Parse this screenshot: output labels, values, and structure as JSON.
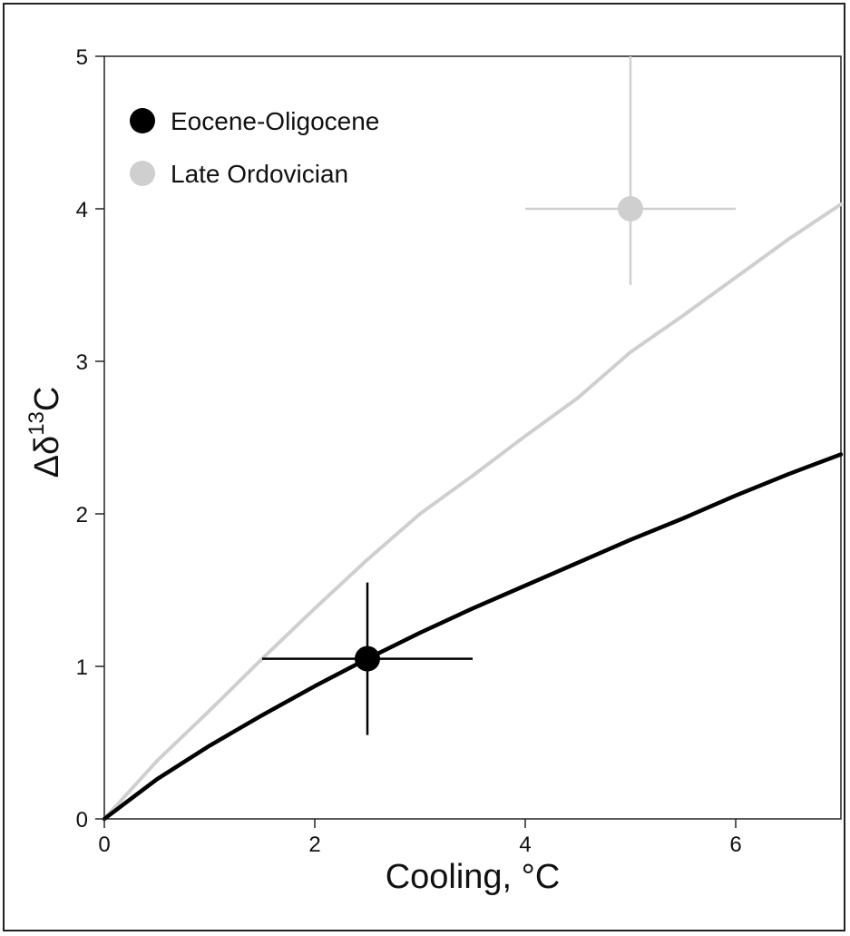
{
  "chart_data": {
    "type": "scatter",
    "xlabel": "Cooling, °C",
    "ylabel_main": "Δδ",
    "ylabel_sup": "13",
    "ylabel_tail": "C",
    "xlim": [
      0,
      7
    ],
    "ylim": [
      0,
      5
    ],
    "xticks": [
      0,
      2,
      4,
      6
    ],
    "yticks": [
      0,
      1,
      2,
      3,
      4,
      5
    ],
    "grid": false,
    "legend_position": "top-left",
    "series": [
      {
        "name": "Eocene-Oligocene",
        "color": "#000000",
        "point": {
          "x": 2.5,
          "y": 1.05
        },
        "x_error": [
          1.5,
          3.5
        ],
        "y_error": [
          0.55,
          1.55
        ],
        "curve": {
          "x": [
            0,
            0.5,
            1,
            1.5,
            2,
            2.5,
            3,
            3.5,
            4,
            4.5,
            5,
            5.5,
            6,
            6.5,
            7
          ],
          "y": [
            0,
            0.26,
            0.48,
            0.68,
            0.87,
            1.05,
            1.22,
            1.38,
            1.53,
            1.68,
            1.83,
            1.97,
            2.12,
            2.26,
            2.39
          ]
        }
      },
      {
        "name": "Late Ordovician",
        "color": "#cfcfcf",
        "point": {
          "x": 5,
          "y": 4.0
        },
        "x_error": [
          4,
          6
        ],
        "y_error": [
          3.5,
          5
        ],
        "curve": {
          "x": [
            0,
            0.5,
            1,
            1.5,
            2,
            2.5,
            3,
            3.5,
            4,
            4.5,
            5,
            5.5,
            6,
            6.5,
            7
          ],
          "y": [
            0,
            0.38,
            0.71,
            1.05,
            1.38,
            1.7,
            2.0,
            2.25,
            2.51,
            2.76,
            3.06,
            3.3,
            3.55,
            3.8,
            4.03
          ]
        }
      }
    ]
  }
}
